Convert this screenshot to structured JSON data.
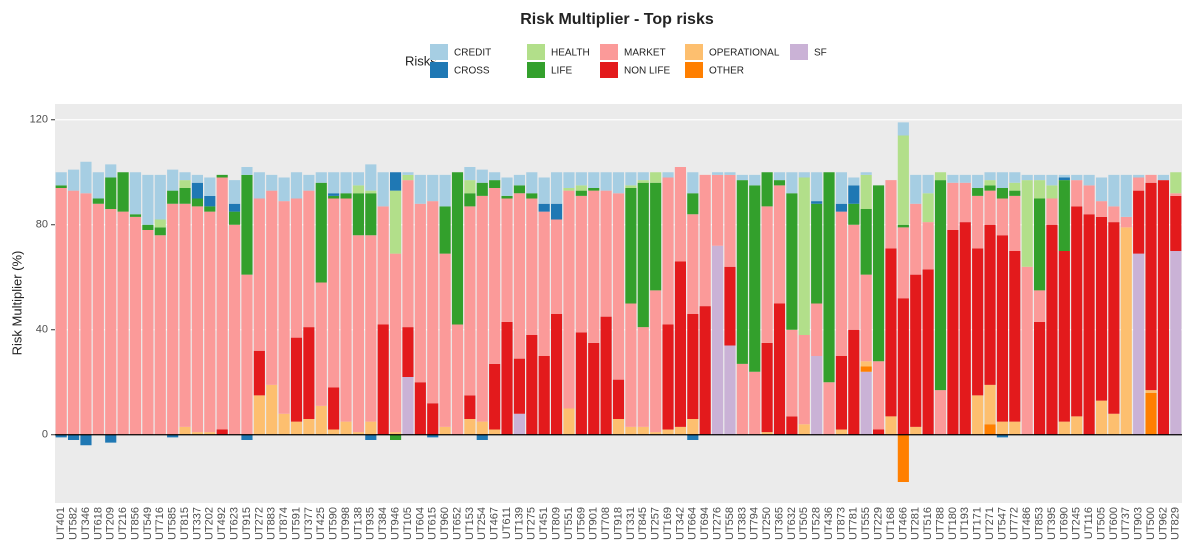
{
  "chart_data": {
    "type": "stacked_bar",
    "title": "Risk Multiplier - Top risks",
    "y_label": "Risk Multiplier (%)",
    "legend_title": "Risks",
    "legend_position": "top",
    "categories": [
      "UT401",
      "UT582",
      "UT346",
      "UT618",
      "UT209",
      "UT216",
      "UT856",
      "UT549",
      "UT716",
      "UT585",
      "UT815",
      "UT337",
      "UT202",
      "UT492",
      "UT623",
      "UT915",
      "UT272",
      "UT883",
      "UT874",
      "UT591",
      "UT377",
      "UT425",
      "UT590",
      "UT998",
      "UT138",
      "UT935",
      "UT384",
      "UT946",
      "UT105",
      "UT604",
      "UT615",
      "UT960",
      "UT652",
      "UT153",
      "UT254",
      "UT467",
      "UT611",
      "UT139",
      "UT275",
      "UT451",
      "UT809",
      "UT551",
      "UT569",
      "UT901",
      "UT708",
      "UT918",
      "UT331",
      "UT845",
      "UT257",
      "UT169",
      "UT342",
      "UT664",
      "UT694",
      "UT276",
      "UT558",
      "UT383",
      "UT794",
      "UT250",
      "UT365",
      "UT632",
      "UT505",
      "UT528",
      "UT436",
      "UT873",
      "UT781",
      "UT555",
      "UT229",
      "UT168",
      "UT466",
      "UT281",
      "UT516",
      "UT788",
      "UT180",
      "UT193",
      "UT171",
      "UT271",
      "UT547",
      "UT772",
      "UT486",
      "UT853",
      "UT395",
      "UT690",
      "UT245",
      "UT116",
      "UT505",
      "UT600",
      "UT737",
      "UT903",
      "UT500",
      "UT962",
      "UT829"
    ],
    "series": [
      {
        "name": "CREDIT",
        "color": "#a6cee3",
        "values": [
          5,
          8,
          12,
          10,
          5,
          0,
          16,
          19,
          17,
          8,
          3,
          3,
          7,
          0,
          9,
          3,
          10,
          6,
          9,
          10,
          6,
          4,
          8,
          8,
          5,
          10,
          13,
          0,
          1,
          11,
          10,
          12,
          0,
          5,
          5,
          3,
          7,
          4,
          8,
          10,
          12,
          6,
          5,
          6,
          7,
          8,
          5,
          3,
          0,
          2,
          0,
          8,
          0,
          1,
          1,
          2,
          4,
          0,
          3,
          8,
          2,
          11,
          0,
          12,
          3,
          1,
          0,
          0,
          5,
          11,
          7,
          0,
          3,
          3,
          5,
          3,
          6,
          4,
          2,
          2,
          4,
          1,
          2,
          4,
          9,
          12,
          16,
          1,
          0,
          2,
          0
        ]
      },
      {
        "name": "CROSS",
        "color": "#1f78b4",
        "values": [
          -1,
          -2,
          -4,
          0,
          -3,
          0,
          0,
          0,
          0,
          -1,
          0,
          6,
          4,
          0,
          3,
          -2,
          0,
          0,
          0,
          0,
          0,
          0,
          1,
          0,
          0,
          -2,
          0,
          7,
          0,
          0,
          -1,
          0,
          0,
          0,
          -2,
          0,
          0,
          0,
          0,
          3,
          6,
          0,
          0,
          0,
          0,
          0,
          0,
          0,
          0,
          0,
          0,
          -2,
          0,
          0,
          0,
          0,
          0,
          0,
          0,
          0,
          0,
          1,
          0,
          3,
          7,
          0,
          0,
          0,
          0,
          0,
          0,
          0,
          0,
          0,
          0,
          0,
          -1,
          0,
          0,
          0,
          0,
          1,
          0,
          0,
          0,
          0,
          0,
          0,
          0,
          0,
          0
        ]
      },
      {
        "name": "HEALTH",
        "color": "#b2df8a",
        "values": [
          0,
          0,
          0,
          0,
          0,
          0,
          0,
          0,
          3,
          0,
          3,
          0,
          0,
          0,
          0,
          0,
          0,
          0,
          0,
          0,
          0,
          0,
          0,
          0,
          3,
          1,
          0,
          24,
          2,
          0,
          0,
          0,
          0,
          5,
          0,
          0,
          0,
          0,
          0,
          0,
          0,
          1,
          2,
          0,
          0,
          0,
          1,
          1,
          4,
          0,
          0,
          0,
          0,
          0,
          0,
          0,
          0,
          0,
          0,
          0,
          60,
          0,
          0,
          0,
          0,
          13,
          0,
          0,
          34,
          0,
          11,
          3,
          0,
          0,
          0,
          2,
          0,
          3,
          33,
          7,
          5,
          0,
          0,
          0,
          0,
          0,
          0,
          0,
          0,
          0,
          8
        ]
      },
      {
        "name": "LIFE",
        "color": "#33a02c",
        "values": [
          1,
          0,
          0,
          2,
          12,
          15,
          1,
          2,
          3,
          5,
          6,
          3,
          2,
          1,
          5,
          38,
          0,
          0,
          0,
          0,
          0,
          38,
          1,
          2,
          16,
          16,
          0,
          -2,
          0,
          0,
          0,
          18,
          58,
          5,
          5,
          3,
          1,
          3,
          2,
          0,
          0,
          0,
          2,
          1,
          0,
          0,
          44,
          55,
          41,
          0,
          0,
          8,
          0,
          0,
          0,
          70,
          71,
          13,
          2,
          52,
          0,
          38,
          80,
          0,
          8,
          25,
          67,
          0,
          1,
          0,
          0,
          80,
          0,
          0,
          3,
          2,
          4,
          2,
          0,
          35,
          0,
          27,
          0,
          0,
          0,
          0,
          0,
          0,
          0,
          0,
          0
        ]
      },
      {
        "name": "MARKET",
        "color": "#fb9a99",
        "values": [
          94,
          93,
          92,
          88,
          86,
          85,
          83,
          78,
          76,
          88,
          85,
          86,
          84,
          96,
          80,
          61,
          58,
          74,
          81,
          53,
          52,
          47,
          72,
          85,
          75,
          71,
          45,
          68,
          56,
          68,
          77,
          66,
          42,
          72,
          86,
          67,
          47,
          63,
          52,
          55,
          36,
          83,
          52,
          58,
          48,
          71,
          47,
          38,
          54,
          56,
          36,
          38,
          50,
          27,
          35,
          27,
          24,
          52,
          45,
          33,
          34,
          20,
          20,
          55,
          40,
          33,
          26,
          26,
          27,
          27,
          18,
          17,
          18,
          15,
          20,
          13,
          14,
          21,
          64,
          12,
          10,
          0,
          10,
          11,
          6,
          6,
          4,
          5,
          3,
          0,
          1
        ]
      },
      {
        "name": "NON LIFE",
        "color": "#e31a1c",
        "values": [
          0,
          0,
          0,
          0,
          0,
          0,
          0,
          0,
          0,
          0,
          0,
          0,
          0,
          2,
          0,
          0,
          17,
          0,
          0,
          32,
          35,
          0,
          16,
          0,
          0,
          0,
          42,
          0,
          19,
          20,
          12,
          0,
          0,
          9,
          0,
          25,
          43,
          21,
          38,
          30,
          46,
          0,
          39,
          35,
          45,
          15,
          0,
          0,
          0,
          40,
          63,
          40,
          49,
          0,
          30,
          0,
          0,
          34,
          50,
          7,
          0,
          0,
          0,
          28,
          40,
          0,
          2,
          64,
          52,
          58,
          63,
          0,
          78,
          81,
          56,
          61,
          71,
          65,
          0,
          43,
          80,
          65,
          80,
          84,
          70,
          73,
          0,
          24,
          79,
          97,
          21
        ]
      },
      {
        "name": "OPERATIONAL",
        "color": "#fdbf6f",
        "values": [
          0,
          0,
          0,
          0,
          0,
          0,
          0,
          0,
          0,
          0,
          3,
          1,
          1,
          0,
          0,
          0,
          15,
          19,
          8,
          5,
          6,
          11,
          2,
          5,
          1,
          5,
          0,
          1,
          0,
          0,
          0,
          3,
          0,
          6,
          5,
          2,
          0,
          0,
          0,
          0,
          0,
          10,
          0,
          0,
          0,
          6,
          3,
          3,
          1,
          2,
          3,
          6,
          0,
          0,
          0,
          0,
          0,
          1,
          0,
          0,
          4,
          0,
          0,
          2,
          0,
          2,
          0,
          7,
          0,
          3,
          0,
          0,
          0,
          0,
          15,
          15,
          5,
          5,
          0,
          0,
          0,
          5,
          7,
          0,
          13,
          8,
          79,
          0,
          1,
          0,
          0
        ]
      },
      {
        "name": "OTHER",
        "color": "#ff7f00",
        "values": [
          0,
          0,
          0,
          0,
          0,
          0,
          0,
          0,
          0,
          0,
          0,
          0,
          0,
          0,
          0,
          0,
          0,
          0,
          0,
          0,
          0,
          0,
          0,
          0,
          0,
          0,
          0,
          0,
          0,
          0,
          0,
          0,
          0,
          0,
          0,
          0,
          0,
          0,
          0,
          0,
          0,
          0,
          0,
          0,
          0,
          0,
          0,
          0,
          0,
          0,
          0,
          0,
          0,
          0,
          0,
          0,
          0,
          0,
          0,
          0,
          0,
          0,
          0,
          0,
          0,
          2,
          0,
          0,
          -18,
          0,
          0,
          0,
          0,
          0,
          0,
          4,
          0,
          0,
          0,
          0,
          0,
          0,
          0,
          0,
          0,
          0,
          0,
          0,
          16,
          0,
          0
        ]
      },
      {
        "name": "SF",
        "color": "#cab2d6",
        "values": [
          0,
          0,
          0,
          0,
          0,
          0,
          0,
          0,
          0,
          0,
          0,
          0,
          0,
          0,
          0,
          0,
          0,
          0,
          0,
          0,
          0,
          0,
          0,
          0,
          0,
          0,
          0,
          0,
          22,
          0,
          0,
          0,
          0,
          0,
          0,
          0,
          0,
          8,
          0,
          0,
          0,
          0,
          0,
          0,
          0,
          0,
          0,
          0,
          0,
          0,
          0,
          0,
          0,
          72,
          34,
          0,
          0,
          0,
          0,
          0,
          0,
          30,
          0,
          0,
          0,
          24,
          0,
          0,
          0,
          0,
          0,
          0,
          0,
          0,
          0,
          0,
          0,
          0,
          0,
          0,
          0,
          0,
          0,
          0,
          0,
          0,
          0,
          69,
          0,
          0,
          70
        ]
      }
    ],
    "ylim": [
      -26,
      126
    ],
    "yticks": [
      0,
      40,
      80,
      120
    ],
    "grid": true
  }
}
